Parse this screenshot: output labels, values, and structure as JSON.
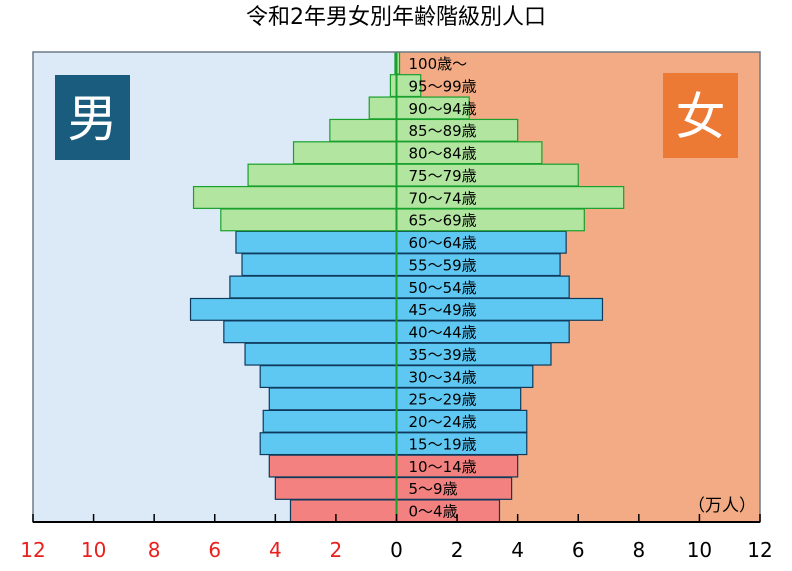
{
  "chart_data": {
    "type": "bar",
    "orientation": "horizontal-population-pyramid",
    "title": "令和2年男女別年齢階級別人口",
    "unit": "（万人）",
    "male_label": "男",
    "female_label": "女",
    "categories": [
      "0～4歳",
      "5～9歳",
      "10～14歳",
      "15～19歳",
      "20～24歳",
      "25～29歳",
      "30～34歳",
      "35～39歳",
      "40～44歳",
      "45～49歳",
      "50～54歳",
      "55～59歳",
      "60～64歳",
      "65～69歳",
      "70～74歳",
      "75～79歳",
      "80～84歳",
      "85～89歳",
      "90～94歳",
      "95～99歳",
      "100歳～"
    ],
    "series": [
      {
        "name": "男",
        "values": [
          3.5,
          4.0,
          4.2,
          4.5,
          4.4,
          4.2,
          4.5,
          5.0,
          5.7,
          6.8,
          5.5,
          5.1,
          5.3,
          5.8,
          6.7,
          4.9,
          3.4,
          2.2,
          0.9,
          0.2,
          0.05
        ]
      },
      {
        "name": "女",
        "values": [
          3.4,
          3.8,
          4.0,
          4.3,
          4.3,
          4.1,
          4.5,
          5.1,
          5.7,
          6.8,
          5.7,
          5.4,
          5.6,
          6.2,
          7.5,
          6.0,
          4.8,
          4.0,
          2.4,
          0.8,
          0.1
        ]
      }
    ],
    "groups": [
      {
        "range": [
          0,
          2
        ],
        "fill": "#f2817f"
      },
      {
        "range": [
          3,
          12
        ],
        "fill": "#5ec8f3"
      },
      {
        "range": [
          13,
          20
        ],
        "fill": "#b2e6a0"
      }
    ],
    "xlim": [
      -12,
      12
    ],
    "xticks": [
      "12",
      "10",
      "8",
      "6",
      "4",
      "2",
      "0",
      "2",
      "4",
      "6",
      "8",
      "10",
      "12"
    ],
    "xtick_color_left": "#e8201e",
    "xtick_color_right": "#000000",
    "background_left": "#dce9f6",
    "background_right": "#f2ab85",
    "male_badge_color": "#1a5c7e",
    "female_badge_color": "#ec7a35",
    "grid": false
  }
}
